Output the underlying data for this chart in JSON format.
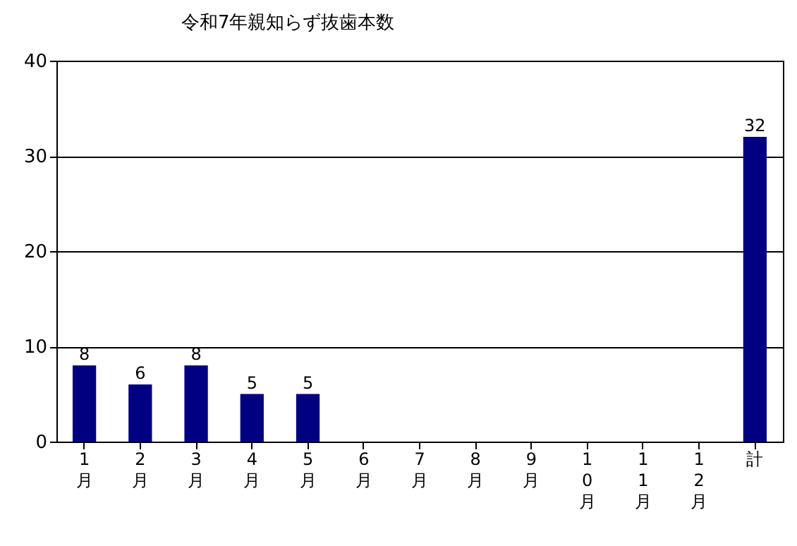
{
  "chart_data": {
    "type": "bar",
    "title": "令和7年親知らず抜歯本数",
    "categories": [
      "1月",
      "2月",
      "3月",
      "4月",
      "5月",
      "6月",
      "7月",
      "8月",
      "9月",
      "10月",
      "11月",
      "12月",
      "計"
    ],
    "values": [
      8,
      6,
      8,
      5,
      5,
      null,
      null,
      null,
      null,
      null,
      null,
      null,
      32
    ],
    "color": "#000080",
    "ylim": [
      0,
      40
    ],
    "yticks": [
      0,
      10,
      20,
      30,
      40
    ],
    "grid": "y",
    "data_labels": true
  }
}
